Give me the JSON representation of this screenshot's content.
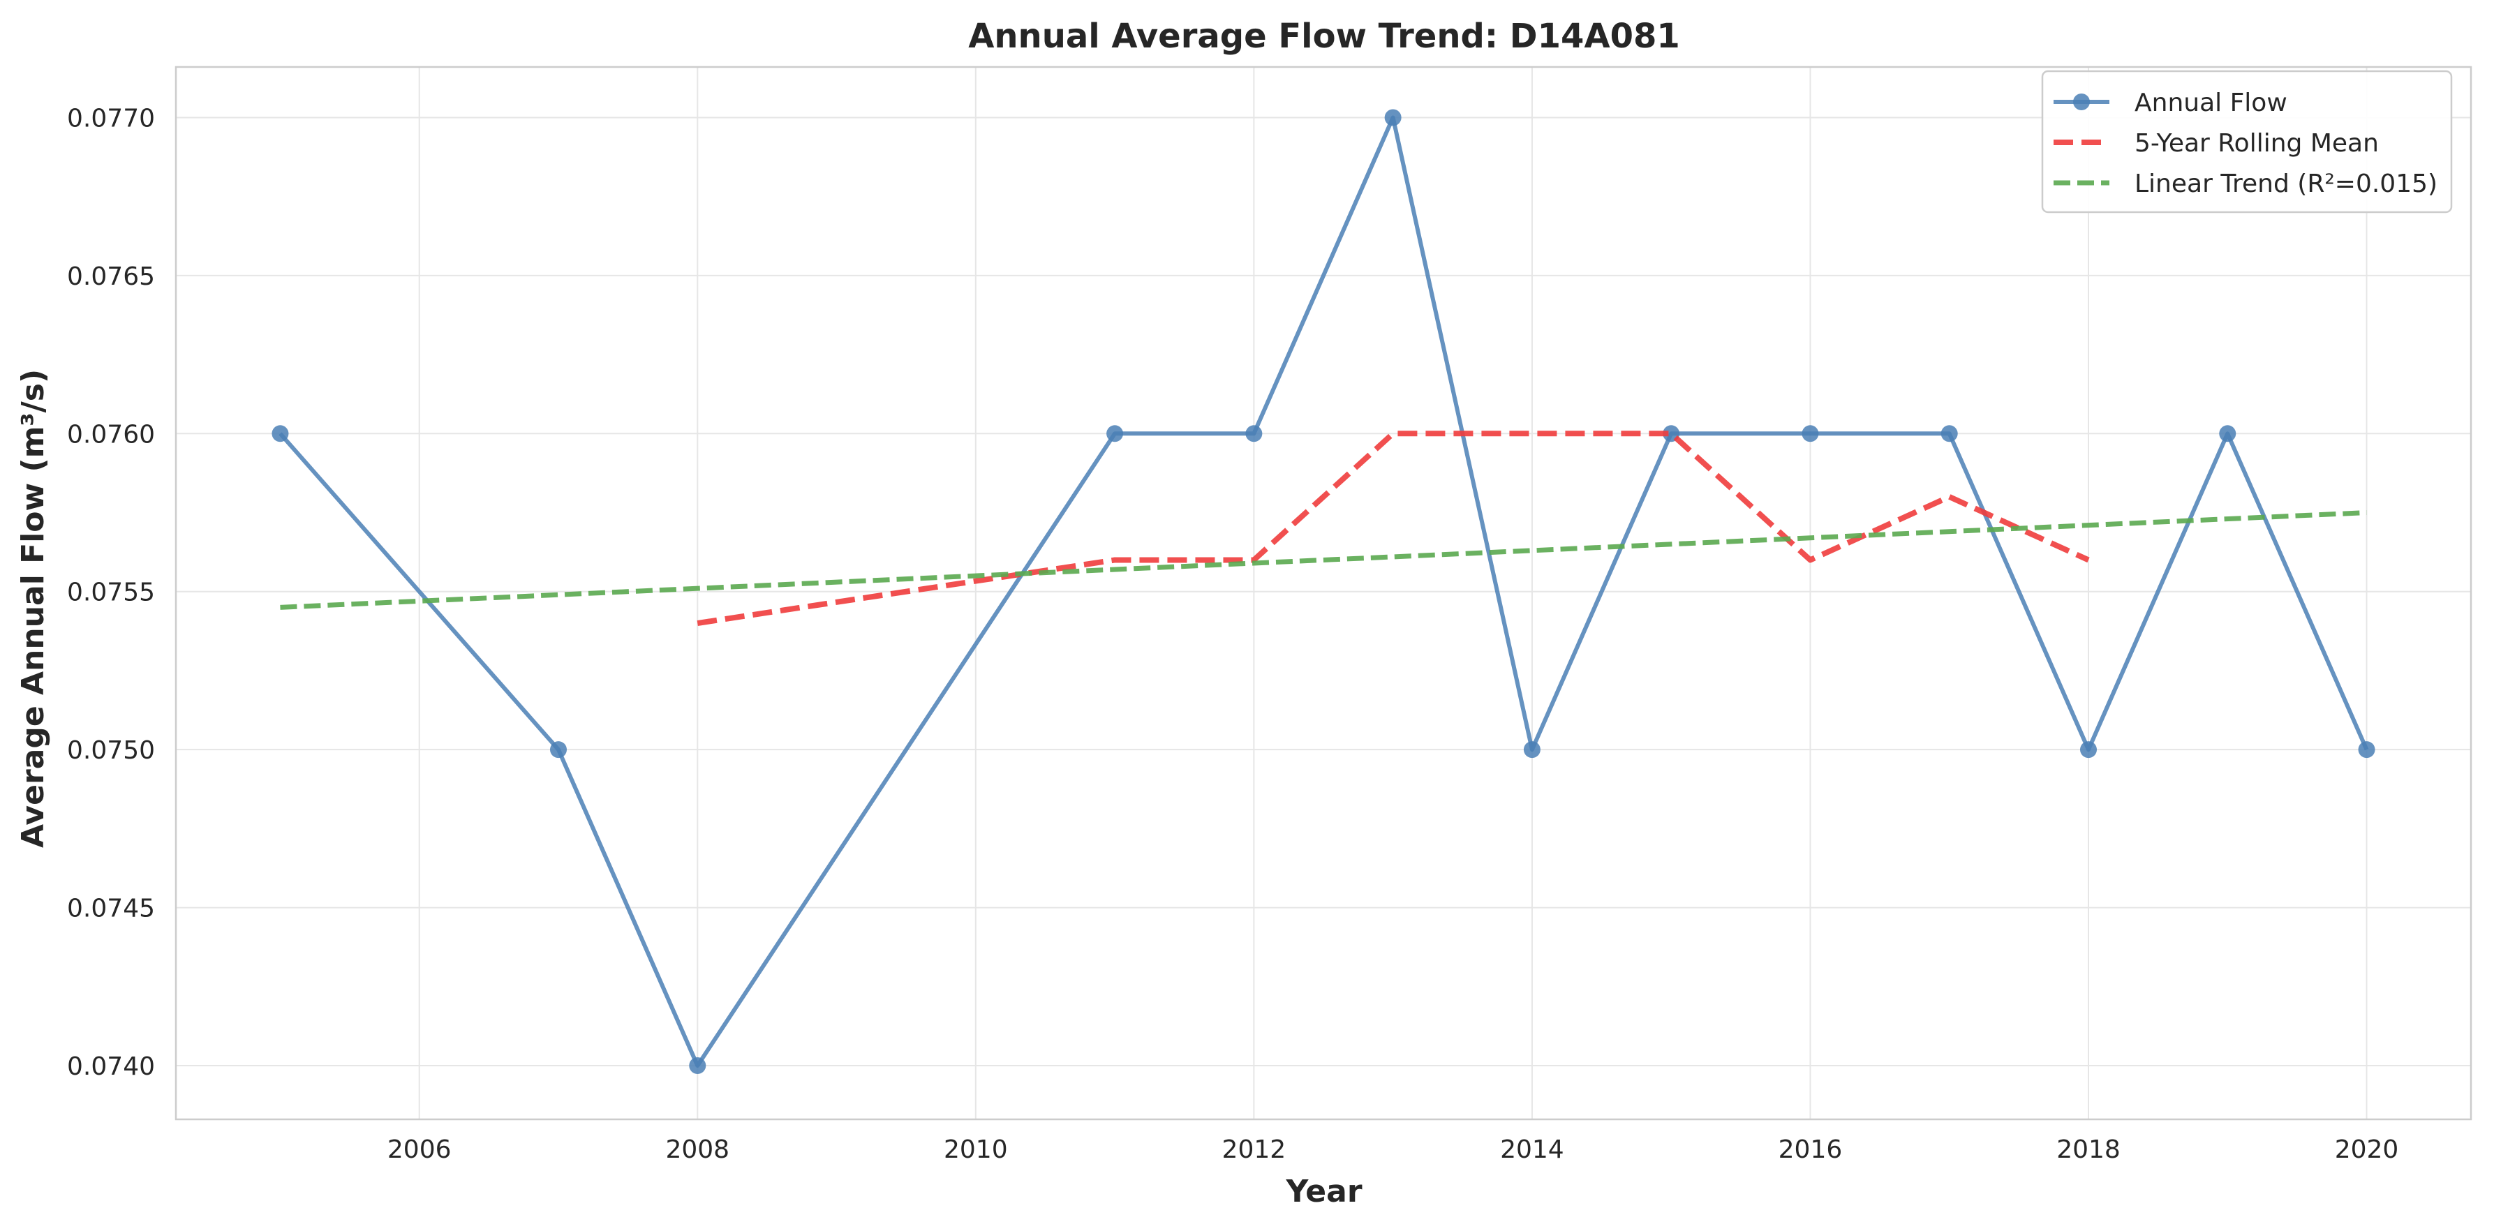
{
  "chart_data": {
    "type": "line",
    "title": "Annual Average Flow Trend: D14A081",
    "xlabel": "Year",
    "ylabel": "Average Annual Flow (m³/s)",
    "xlim": [
      2004.25,
      2020.75
    ],
    "ylim": [
      0.07383,
      0.07716
    ],
    "x_ticks": [
      2006,
      2008,
      2010,
      2012,
      2014,
      2016,
      2018,
      2020
    ],
    "y_ticks": [
      0.074,
      0.0745,
      0.075,
      0.0755,
      0.076,
      0.0765,
      0.077
    ],
    "y_tick_labels": [
      "0.0740",
      "0.0745",
      "0.0750",
      "0.0755",
      "0.0760",
      "0.0765",
      "0.0770"
    ],
    "grid": true,
    "legend_position": "top-right",
    "series": [
      {
        "name": "Annual Flow",
        "style": "solid-markers",
        "color": "#4a7fb5",
        "x": [
          2005,
          2007,
          2008,
          2011,
          2012,
          2013,
          2014,
          2015,
          2016,
          2017,
          2018,
          2019,
          2020
        ],
        "y": [
          0.076,
          0.075,
          0.074,
          0.076,
          0.076,
          0.077,
          0.075,
          0.076,
          0.076,
          0.076,
          0.075,
          0.076,
          0.075
        ]
      },
      {
        "name": "5-Year Rolling Mean",
        "style": "dashed",
        "color": "#f03c3c",
        "x": [
          2008,
          2011,
          2012,
          2013,
          2014,
          2015,
          2016,
          2017,
          2018
        ],
        "y": [
          0.0754,
          0.0756,
          0.0756,
          0.076,
          0.076,
          0.076,
          0.0756,
          0.0758,
          0.0756
        ]
      },
      {
        "name": "Linear Trend (R²=0.015)",
        "style": "dashed",
        "color": "#5aa84f",
        "x": [
          2005,
          2020
        ],
        "y": [
          0.07545,
          0.07575
        ]
      }
    ]
  }
}
